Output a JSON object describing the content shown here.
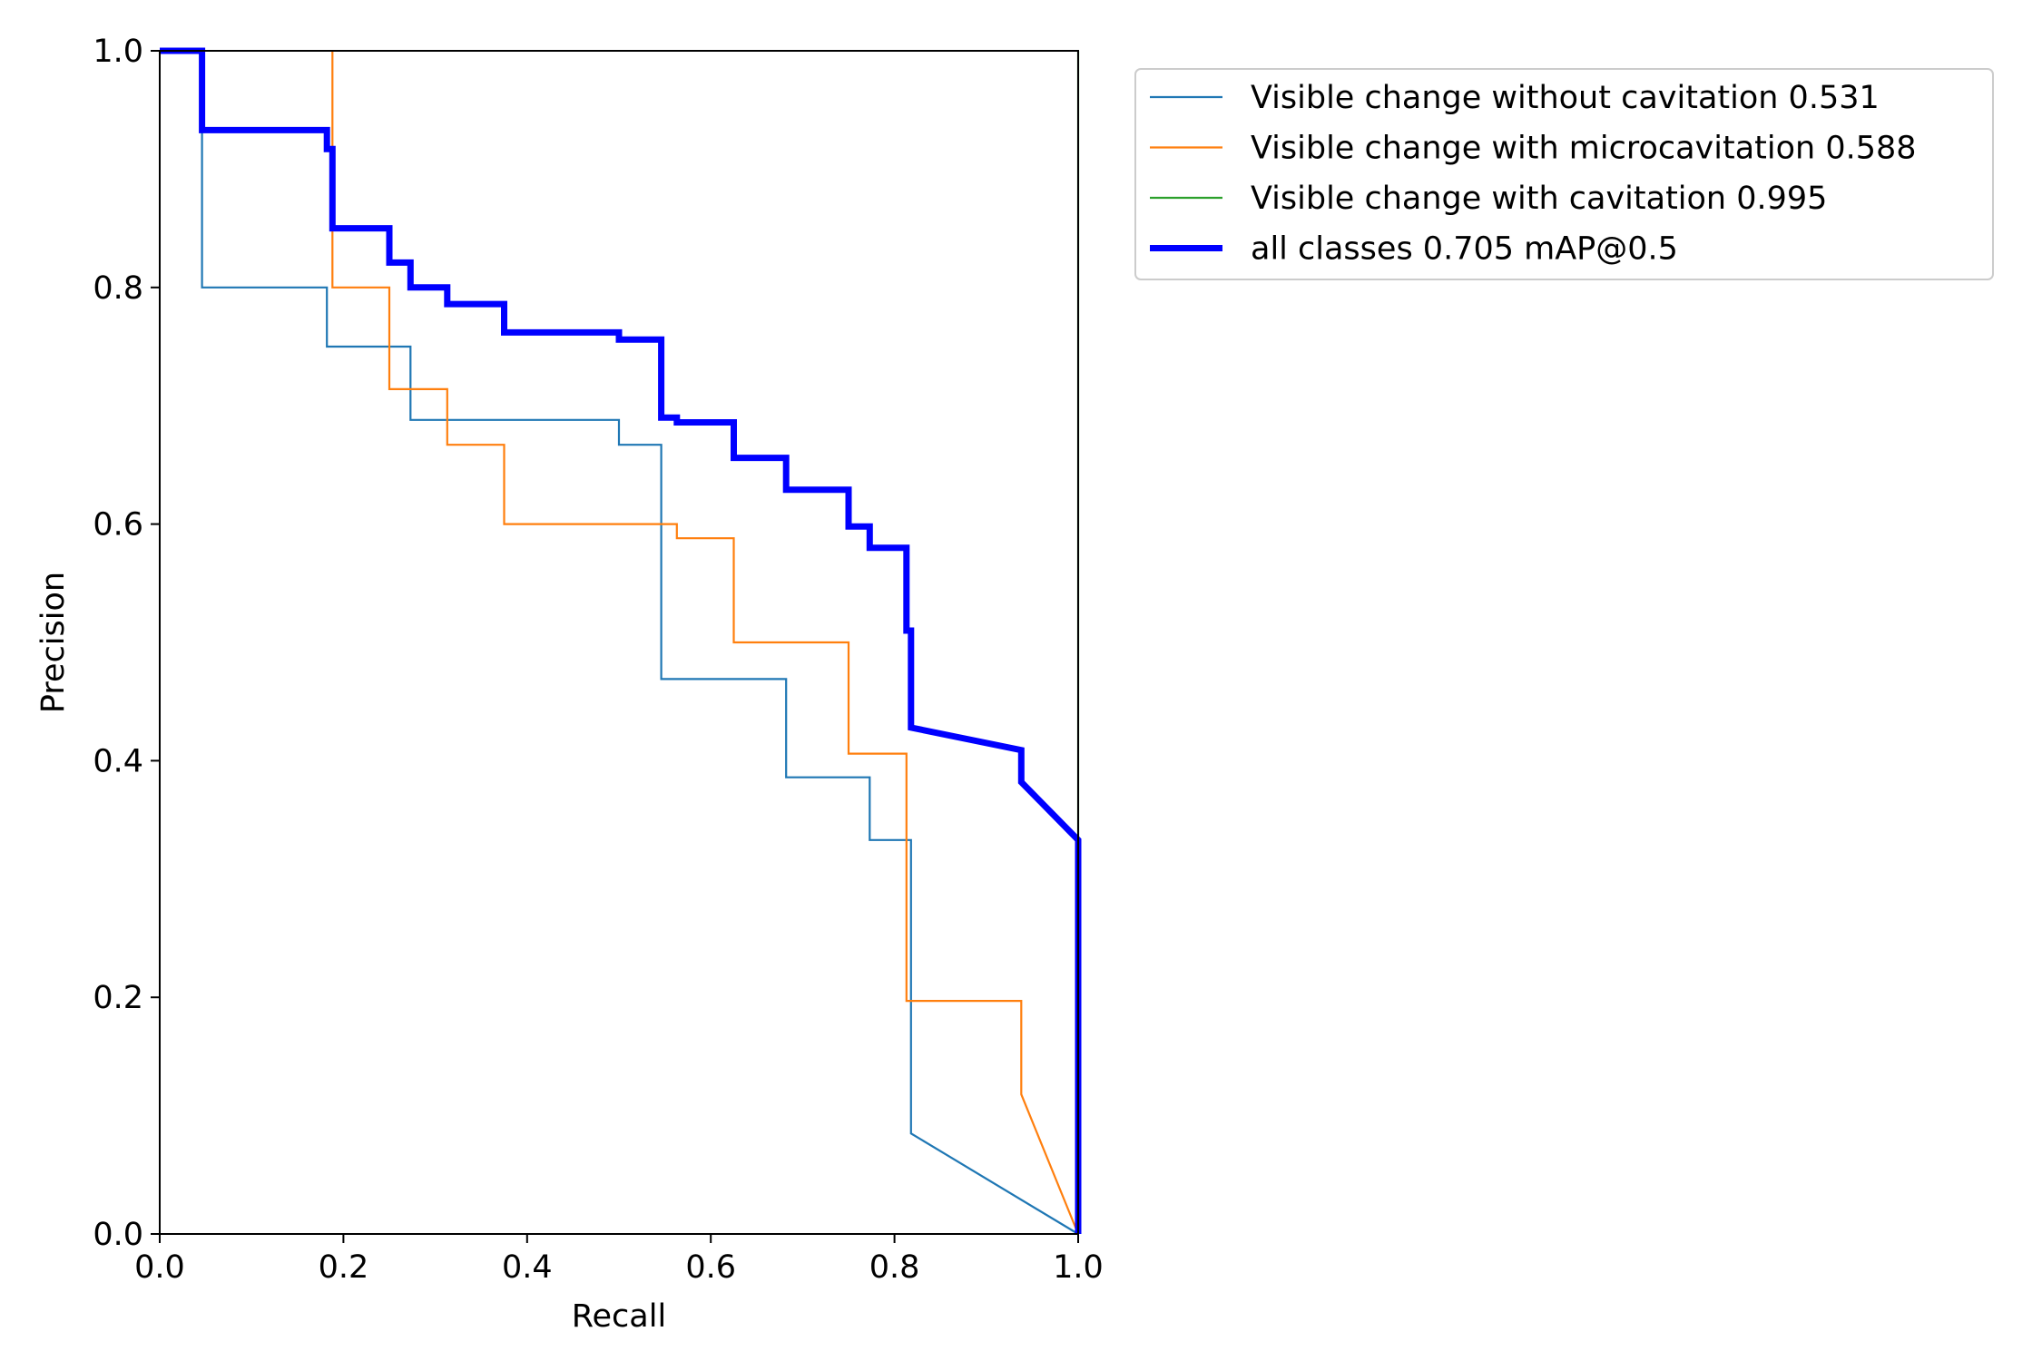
{
  "chart_data": {
    "type": "line",
    "xlabel": "Recall",
    "ylabel": "Precision",
    "xlim": [
      0,
      1
    ],
    "ylim": [
      0,
      1
    ],
    "grid": false,
    "legend_position": "outside-top-right",
    "x_ticks": [
      "0.0",
      "0.2",
      "0.4",
      "0.6",
      "0.8",
      "1.0"
    ],
    "y_ticks": [
      "0.0",
      "0.2",
      "0.4",
      "0.6",
      "0.8",
      "1.0"
    ],
    "series": [
      {
        "name": "Visible change without cavitation 0.531",
        "color": "#1f77b4",
        "line_width": "thin",
        "points": [
          [
            0,
            1.0
          ],
          [
            0.046,
            1.0
          ],
          [
            0.046,
            0.8
          ],
          [
            0.182,
            0.8
          ],
          [
            0.182,
            0.75
          ],
          [
            0.273,
            0.75
          ],
          [
            0.273,
            0.688
          ],
          [
            0.5,
            0.688
          ],
          [
            0.5,
            0.667
          ],
          [
            0.546,
            0.667
          ],
          [
            0.546,
            0.469
          ],
          [
            0.682,
            0.469
          ],
          [
            0.682,
            0.386
          ],
          [
            0.773,
            0.386
          ],
          [
            0.773,
            0.333
          ],
          [
            0.818,
            0.333
          ],
          [
            0.818,
            0.085
          ],
          [
            1.0,
            0.0
          ]
        ]
      },
      {
        "name": "Visible change with microcavitation 0.588",
        "color": "#ff7f0e",
        "line_width": "thin",
        "points": [
          [
            0.188,
            1.0
          ],
          [
            0.188,
            0.8
          ],
          [
            0.25,
            0.8
          ],
          [
            0.25,
            0.714
          ],
          [
            0.313,
            0.714
          ],
          [
            0.313,
            0.667
          ],
          [
            0.375,
            0.667
          ],
          [
            0.375,
            0.6
          ],
          [
            0.563,
            0.6
          ],
          [
            0.563,
            0.588
          ],
          [
            0.625,
            0.588
          ],
          [
            0.625,
            0.5
          ],
          [
            0.75,
            0.5
          ],
          [
            0.75,
            0.406
          ],
          [
            0.813,
            0.406
          ],
          [
            0.813,
            0.197
          ],
          [
            0.938,
            0.197
          ],
          [
            0.938,
            0.118
          ],
          [
            1.0,
            0.0
          ]
        ]
      },
      {
        "name": "Visible change with cavitation 0.995",
        "color": "#2ca02c",
        "line_width": "thin",
        "points": [
          [
            1.0,
            1.0
          ],
          [
            1.0,
            0.0
          ]
        ]
      },
      {
        "name": "all classes 0.705 mAP@0.5",
        "color": "#0000ff",
        "line_width": "thick",
        "points": [
          [
            0,
            1.0
          ],
          [
            0.046,
            1.0
          ],
          [
            0.046,
            0.933
          ],
          [
            0.182,
            0.933
          ],
          [
            0.182,
            0.917
          ],
          [
            0.188,
            0.917
          ],
          [
            0.188,
            0.85
          ],
          [
            0.25,
            0.85
          ],
          [
            0.25,
            0.821
          ],
          [
            0.273,
            0.821
          ],
          [
            0.273,
            0.8
          ],
          [
            0.313,
            0.8
          ],
          [
            0.313,
            0.786
          ],
          [
            0.375,
            0.786
          ],
          [
            0.375,
            0.762
          ],
          [
            0.5,
            0.762
          ],
          [
            0.5,
            0.756
          ],
          [
            0.546,
            0.756
          ],
          [
            0.546,
            0.69
          ],
          [
            0.563,
            0.69
          ],
          [
            0.563,
            0.686
          ],
          [
            0.625,
            0.686
          ],
          [
            0.625,
            0.656
          ],
          [
            0.682,
            0.656
          ],
          [
            0.682,
            0.629
          ],
          [
            0.75,
            0.629
          ],
          [
            0.75,
            0.598
          ],
          [
            0.773,
            0.598
          ],
          [
            0.773,
            0.58
          ],
          [
            0.813,
            0.58
          ],
          [
            0.813,
            0.51
          ],
          [
            0.818,
            0.51
          ],
          [
            0.818,
            0.428
          ],
          [
            0.938,
            0.409
          ],
          [
            0.938,
            0.382
          ],
          [
            1.0,
            0.333
          ],
          [
            1.0,
            0.0
          ]
        ]
      }
    ]
  }
}
